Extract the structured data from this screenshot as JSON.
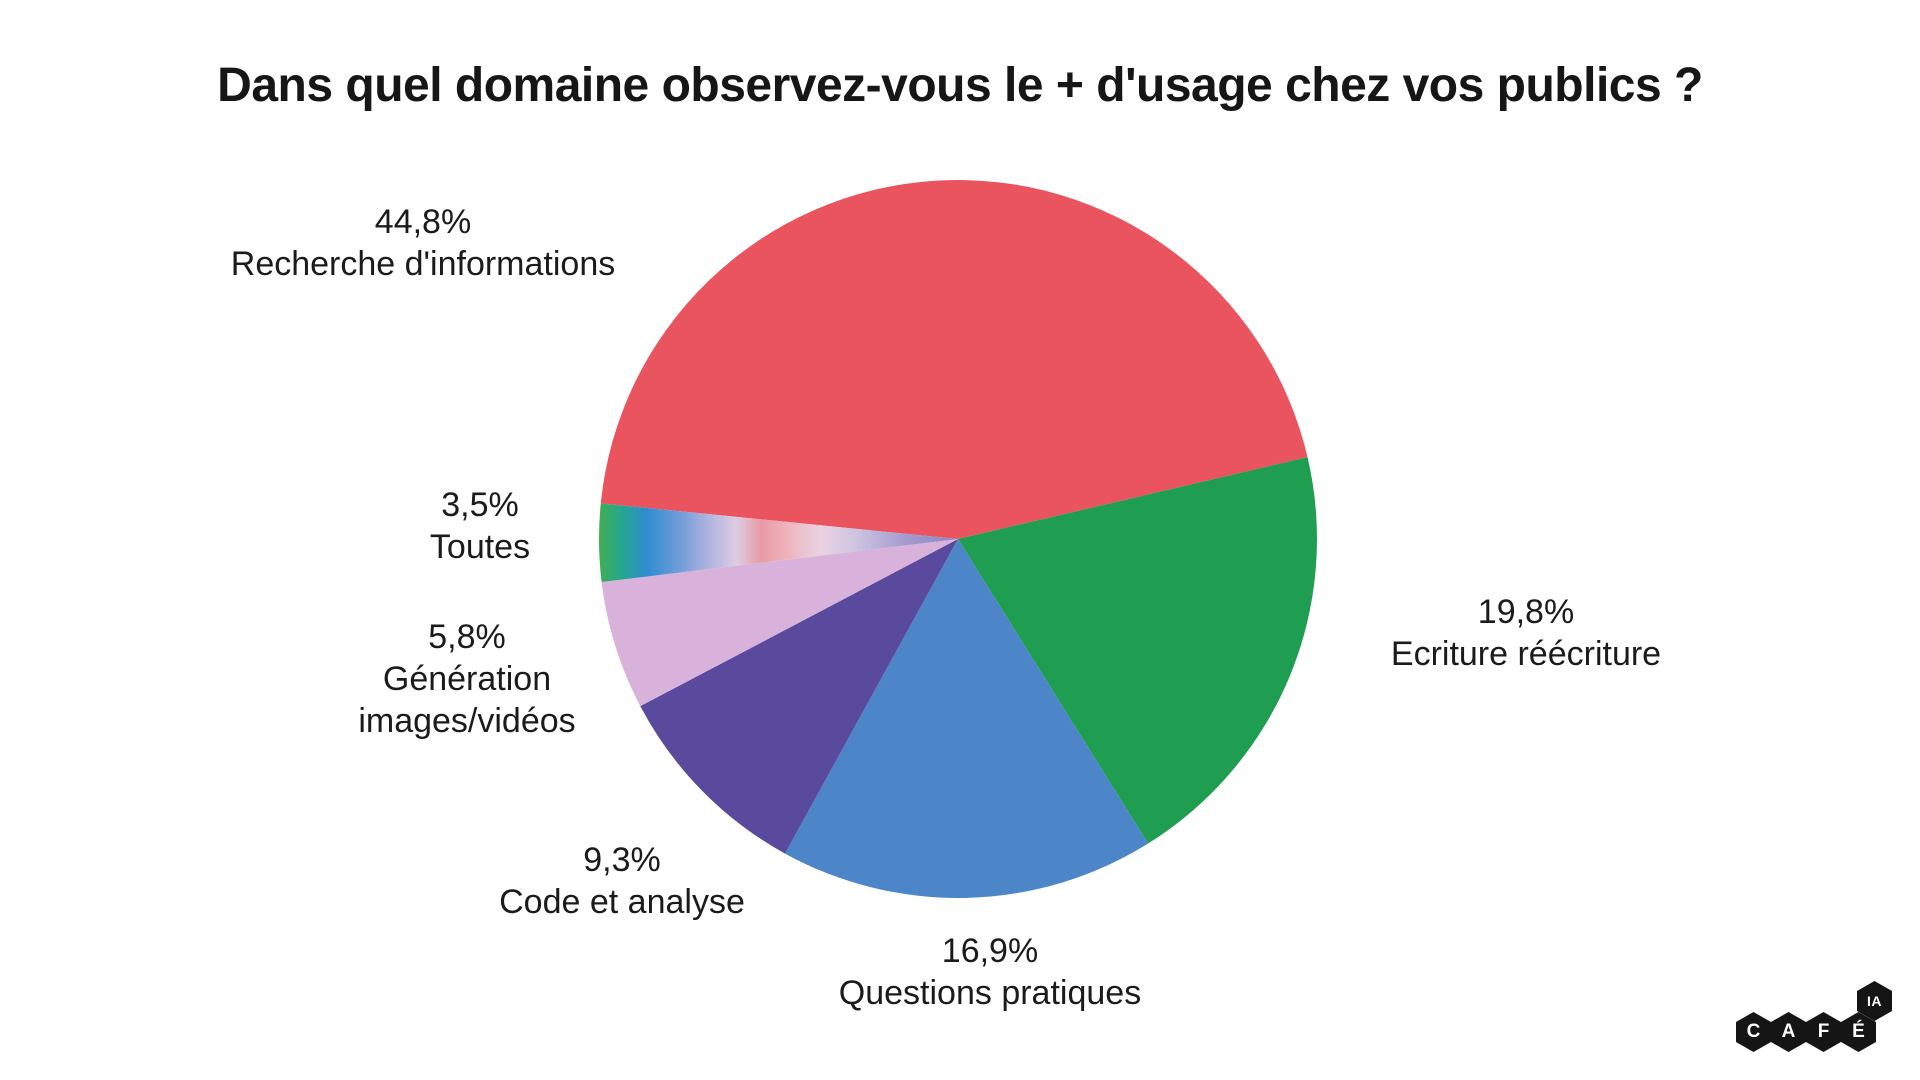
{
  "title": "Dans quel domaine observez-vous le + d'usage chez vos publics ?",
  "chart_data": {
    "type": "pie",
    "title": "Dans quel domaine observez-vous le + d'usage chez vos publics ?",
    "unit": "%",
    "legend_position": "outside-callouts",
    "start_angle_deg": -174.3,
    "clockwise": true,
    "slices": [
      {
        "label": "Recherche d'informations",
        "value": 44.8,
        "value_label": "44,8%",
        "color": "#E9545F"
      },
      {
        "label": "Ecriture réécriture",
        "value": 19.8,
        "value_label": "19,8%",
        "color": "#1F9D51"
      },
      {
        "label": "Questions pratiques",
        "value": 16.9,
        "value_label": "16,9%",
        "color": "#4C86C8"
      },
      {
        "label": "Code et analyse",
        "value": 9.3,
        "value_label": "9,3%",
        "color": "#5A4A9E"
      },
      {
        "label": "Génération images/vidéos",
        "value": 5.8,
        "value_label": "5,8%",
        "color": "#D9B2DC"
      },
      {
        "label": "Toutes",
        "value": 3.5,
        "value_label": "3,5%",
        "color": "gradient",
        "gradient": [
          {
            "offset": "0%",
            "color": "#3FAD55"
          },
          {
            "offset": "6%",
            "color": "#26A78F"
          },
          {
            "offset": "13%",
            "color": "#2F8DD0"
          },
          {
            "offset": "22%",
            "color": "#6E9BD8"
          },
          {
            "offset": "30%",
            "color": "#AEB2DF"
          },
          {
            "offset": "38%",
            "color": "#DCCDE4"
          },
          {
            "offset": "45%",
            "color": "#E89AA4"
          },
          {
            "offset": "52%",
            "color": "#EFB3BD"
          },
          {
            "offset": "62%",
            "color": "#E9D3E2"
          },
          {
            "offset": "72%",
            "color": "#CCC3E0"
          },
          {
            "offset": "85%",
            "color": "#A49CCF"
          },
          {
            "offset": "100%",
            "color": "#8C86C0"
          }
        ]
      }
    ]
  },
  "logo": {
    "letters": [
      "C",
      "A",
      "F",
      "É"
    ],
    "badge": "IA",
    "color": "#151515"
  }
}
